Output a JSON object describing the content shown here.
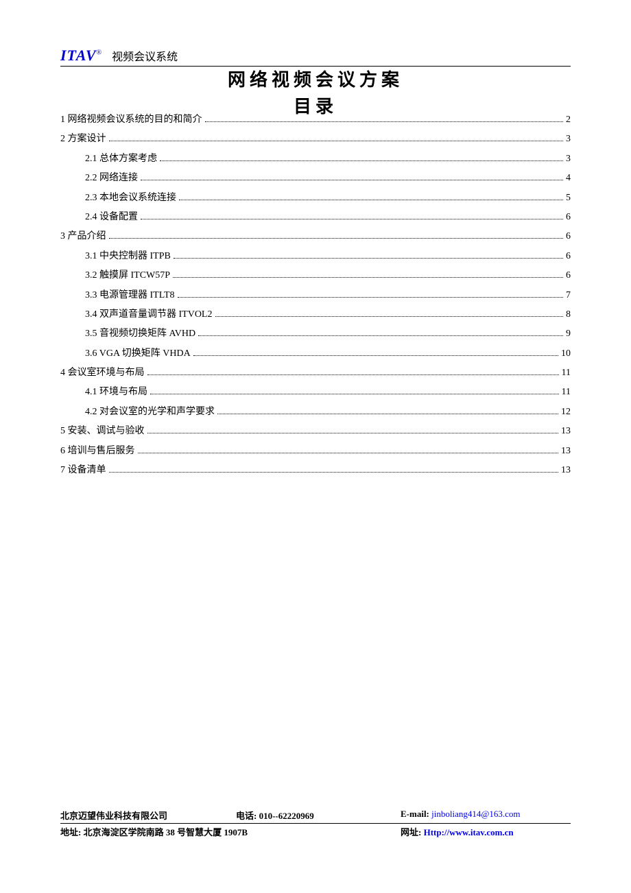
{
  "header": {
    "logo_text": "ITAV",
    "logo_supersript": "®",
    "subtitle": "视频会议系统"
  },
  "title": {
    "line1": "网络视频会议方案",
    "line2": "目录"
  },
  "toc": [
    {
      "level": 1,
      "label": "1 网络视频会议系统的目的和简介",
      "page": "2"
    },
    {
      "level": 1,
      "label": "2 方案设计",
      "page": "3"
    },
    {
      "level": 2,
      "label": "2.1 总体方案考虑",
      "page": "3"
    },
    {
      "level": 2,
      "label": "2.2 网络连接",
      "page": "4"
    },
    {
      "level": 2,
      "label": "2.3 本地会议系统连接",
      "page": "5"
    },
    {
      "level": 2,
      "label": "2.4 设备配置",
      "page": "6"
    },
    {
      "level": 1,
      "label": "3 产品介绍",
      "page": "6"
    },
    {
      "level": 2,
      "label": "3.1 中央控制器 ITPB",
      "page": "6"
    },
    {
      "level": 2,
      "label": "3.2 触摸屏 ITCW57P",
      "page": "6"
    },
    {
      "level": 2,
      "label": "3.3 电源管理器 ITLT8",
      "page": "7"
    },
    {
      "level": 2,
      "label": "3.4 双声道音量调节器 ITVOL2",
      "page": "8"
    },
    {
      "level": 2,
      "label": "3.5 音视频切换矩阵 AVHD",
      "page": "9"
    },
    {
      "level": 2,
      "label": "3.6 VGA 切换矩阵 VHDA",
      "page": "10"
    },
    {
      "level": 1,
      "label": "4 会议室环境与布局",
      "page": "11"
    },
    {
      "level": 2,
      "label": "4.1 环境与布局",
      "page": "11"
    },
    {
      "level": 2,
      "label": "4.2 对会议室的光学和声学要求",
      "page": "12"
    },
    {
      "level": 1,
      "label": "5 安装、调试与验收",
      "page": "13"
    },
    {
      "level": 1,
      "label": "6 培训与售后服务",
      "page": "13"
    },
    {
      "level": 1,
      "label": "7 设备清单",
      "page": "13"
    }
  ],
  "footer": {
    "company": "北京迈望伟业科技有限公司",
    "phone_label": "电话:",
    "phone_value": "010--62220969",
    "email_label": "E-mail:",
    "email_value": "jinboliang414@163.com",
    "address_label": "地址:",
    "address_value": "北京海淀区学院南路 38 号智慧大厦 1907B",
    "website_label": "网址:",
    "website_value": "Http://www.itav.com.cn"
  },
  "colors": {
    "text": "#000000",
    "logo": "#0000cc",
    "link": "#0000ee",
    "background": "#ffffff",
    "rule": "#000000"
  },
  "typography": {
    "body_fontsize_pt": 10.5,
    "title_fontsize_pt": 20,
    "logo_fontsize_pt": 16
  }
}
